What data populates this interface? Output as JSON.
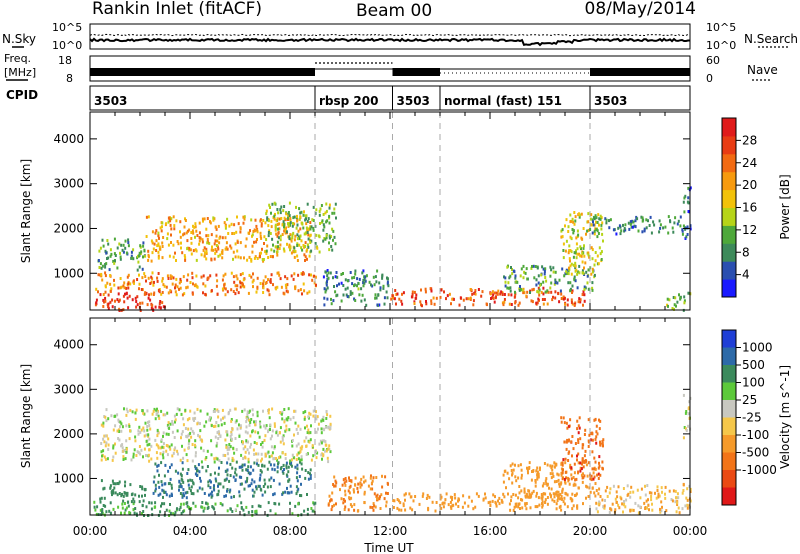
{
  "header": {
    "title": "Rankin Inlet (fitACF)",
    "beam": "Beam 00",
    "date": "08/May/2014"
  },
  "noise_panel": {
    "left_label": "N.Sky",
    "right_label": "N.Search",
    "tick_top": "10^5",
    "tick_bottom": "10^0"
  },
  "freq_panel": {
    "left_label_1": "Freq.",
    "left_label_2": "[MHz]",
    "left_tick_top": "18",
    "left_tick_bottom": "8",
    "right_label": "Nave",
    "right_tick_top": "60",
    "right_tick_bottom": "0"
  },
  "cpid_panel": {
    "label": "CPID",
    "segments": [
      {
        "start_h": 0,
        "end_h": 9.0,
        "text": "3503"
      },
      {
        "start_h": 9.0,
        "end_h": 12.1,
        "text": "rbsp 200"
      },
      {
        "start_h": 12.1,
        "end_h": 14.0,
        "text": "3503"
      },
      {
        "start_h": 14.0,
        "end_h": 20.0,
        "text": "normal (fast) 151"
      },
      {
        "start_h": 20.0,
        "end_h": 24.0,
        "text": "3503"
      }
    ]
  },
  "axes": {
    "x_ticks": [
      "00:00",
      "04:00",
      "08:00",
      "12:00",
      "16:00",
      "20:00",
      "00:00"
    ],
    "x_tick_hours": [
      0,
      4,
      8,
      12,
      16,
      20,
      24
    ],
    "xlabel": "Time UT",
    "ylabel": "Slant Range [km]",
    "y_ticks": [
      "1000",
      "2000",
      "3000",
      "4000"
    ],
    "y_tick_values": [
      1000,
      2000,
      3000,
      4000
    ],
    "ylim": [
      180,
      4600
    ],
    "xlim_hours": [
      0,
      24
    ]
  },
  "colorbars": {
    "power": {
      "label": "Power [dB]",
      "ticks": [
        "4",
        "8",
        "12",
        "16",
        "20",
        "24",
        "28"
      ],
      "colors": [
        "#1a1aff",
        "#2a4fb0",
        "#3d8a5a",
        "#4ea83a",
        "#b6d418",
        "#f2c20a",
        "#f79a0e",
        "#f26a12",
        "#e83c14",
        "#e01b1b"
      ]
    },
    "velocity": {
      "label": "Velocity [m s^-1]",
      "ticks": [
        "1000",
        "500",
        "100",
        "25",
        "-25",
        "-100",
        "-500",
        "-1000"
      ],
      "colors": [
        "#1f3fd6",
        "#2d6aa8",
        "#3b8a5c",
        "#5cc93a",
        "#c8c8c0",
        "#f5c74a",
        "#f59a2a",
        "#f27418",
        "#ea4a14",
        "#e01818"
      ]
    }
  },
  "chart_data": {
    "type": "heatmap",
    "x_unit": "hours UT",
    "y_unit": "km",
    "power_regions": [
      {
        "t0": 0.1,
        "t1": 3.0,
        "r0": 200,
        "r1": 600,
        "level": 28
      },
      {
        "t0": 0.2,
        "t1": 9.0,
        "r0": 550,
        "r1": 1050,
        "level": 22
      },
      {
        "t0": 0.3,
        "t1": 2.2,
        "r0": 1100,
        "r1": 1800,
        "level": 10
      },
      {
        "t0": 2.2,
        "t1": 8.8,
        "r0": 1300,
        "r1": 2300,
        "level": 20
      },
      {
        "t0": 7.0,
        "t1": 9.8,
        "r0": 1500,
        "r1": 2600,
        "level": 12
      },
      {
        "t0": 9.3,
        "t1": 11.9,
        "r0": 300,
        "r1": 1100,
        "level": 8
      },
      {
        "t0": 12.0,
        "t1": 19.8,
        "r0": 300,
        "r1": 700,
        "level": 26
      },
      {
        "t0": 16.5,
        "t1": 20.2,
        "r0": 600,
        "r1": 1200,
        "level": 10
      },
      {
        "t0": 18.8,
        "t1": 20.5,
        "r0": 1000,
        "r1": 2400,
        "level": 16
      },
      {
        "t0": 20.0,
        "t1": 23.9,
        "r0": 1900,
        "r1": 2300,
        "level": 8
      },
      {
        "t0": 23.0,
        "t1": 24.0,
        "r0": 200,
        "r1": 600,
        "level": 12
      },
      {
        "t0": 23.7,
        "t1": 24.0,
        "r0": 1800,
        "r1": 3000,
        "level": 6
      }
    ],
    "velocity_regions": [
      {
        "t0": 0.1,
        "t1": 9.0,
        "r0": 200,
        "r1": 500,
        "velocity": 80
      },
      {
        "t0": 0.2,
        "t1": 2.2,
        "r0": 500,
        "r1": 1000,
        "velocity": 200
      },
      {
        "t0": 2.5,
        "t1": 8.8,
        "r0": 600,
        "r1": 1400,
        "velocity": 300
      },
      {
        "t0": 0.4,
        "t1": 9.6,
        "r0": 1400,
        "r1": 2600,
        "velocity": 0
      },
      {
        "t0": 9.5,
        "t1": 11.9,
        "r0": 300,
        "r1": 1100,
        "velocity": -300
      },
      {
        "t0": 12.0,
        "t1": 19.8,
        "r0": 300,
        "r1": 700,
        "velocity": -150
      },
      {
        "t0": 16.5,
        "t1": 20.2,
        "r0": 600,
        "r1": 1400,
        "velocity": -200
      },
      {
        "t0": 18.8,
        "t1": 20.5,
        "r0": 1000,
        "r1": 2400,
        "velocity": -700
      },
      {
        "t0": 20.2,
        "t1": 24.0,
        "r0": 250,
        "r1": 900,
        "velocity": -60
      },
      {
        "t0": 23.7,
        "t1": 24.0,
        "r0": 1900,
        "r1": 2900,
        "velocity": 0
      }
    ]
  }
}
